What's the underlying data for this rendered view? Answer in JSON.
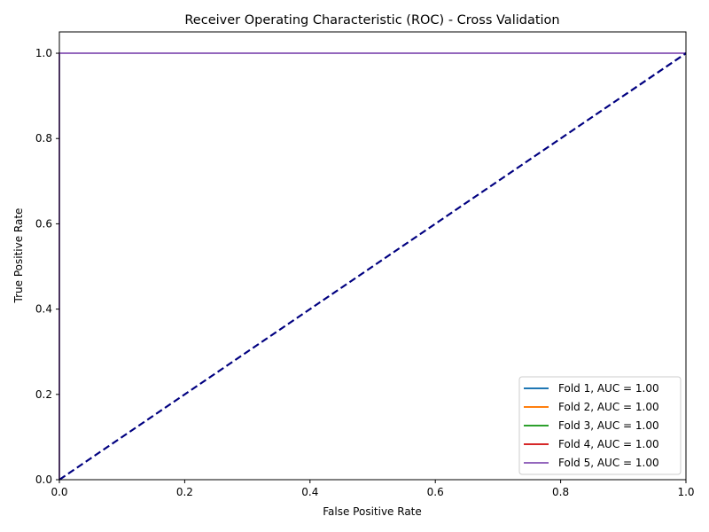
{
  "chart_data": {
    "type": "line",
    "title": "Receiver Operating Characteristic (ROC) - Cross Validation",
    "xlabel": "False Positive Rate",
    "ylabel": "True Positive Rate",
    "xlim": [
      0.0,
      1.0
    ],
    "ylim": [
      0.0,
      1.05
    ],
    "x_ticks": [
      "0.0",
      "0.2",
      "0.4",
      "0.6",
      "0.8",
      "1.0"
    ],
    "y_ticks": [
      "0.0",
      "0.2",
      "0.4",
      "0.6",
      "0.8",
      "1.0"
    ],
    "grid": false,
    "legend_position": "lower-right",
    "series": [
      {
        "name": "Fold 1, AUC = 1.00",
        "color": "#1f77b4",
        "x": [
          0.0,
          0.0,
          1.0
        ],
        "y": [
          0.0,
          1.0,
          1.0
        ]
      },
      {
        "name": "Fold 2, AUC = 1.00",
        "color": "#ff7f0e",
        "x": [
          0.0,
          0.0,
          1.0
        ],
        "y": [
          0.0,
          1.0,
          1.0
        ]
      },
      {
        "name": "Fold 3, AUC = 1.00",
        "color": "#2ca02c",
        "x": [
          0.0,
          0.0,
          1.0
        ],
        "y": [
          0.0,
          1.0,
          1.0
        ]
      },
      {
        "name": "Fold 4, AUC = 1.00",
        "color": "#d62728",
        "x": [
          0.0,
          0.0,
          1.0
        ],
        "y": [
          0.0,
          1.0,
          1.0
        ]
      },
      {
        "name": "Fold 5, AUC = 1.00",
        "color": "#9467bd",
        "x": [
          0.0,
          0.0,
          1.0
        ],
        "y": [
          0.0,
          1.0,
          1.0
        ]
      }
    ],
    "reference_line": {
      "color": "#000080",
      "style": "dashed",
      "x": [
        0.0,
        1.0
      ],
      "y": [
        0.0,
        1.0
      ]
    }
  }
}
